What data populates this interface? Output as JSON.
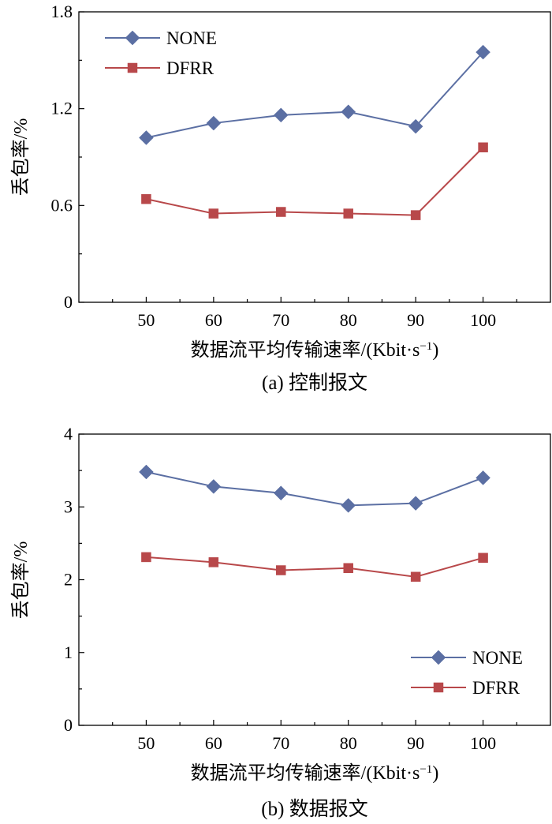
{
  "chart_data": [
    {
      "type": "line",
      "categories": [
        "50",
        "60",
        "70",
        "80",
        "90",
        "100"
      ],
      "x": [
        50,
        60,
        70,
        80,
        90,
        100
      ],
      "series": [
        {
          "name": "NONE",
          "values": [
            1.02,
            1.11,
            1.16,
            1.18,
            1.09,
            1.55
          ],
          "color": "#5b6fa3",
          "marker": "diamond"
        },
        {
          "name": "DFRR",
          "values": [
            0.64,
            0.55,
            0.56,
            0.55,
            0.54,
            0.96
          ],
          "color": "#b8484a",
          "marker": "square"
        }
      ],
      "xlabel": "数据流平均传输速率/(Kbit·s",
      "xlabel_sup": "−1",
      "xlabel_end": ")",
      "ylabel": "丢包率/%",
      "yticks": [
        "0",
        "0.6",
        "1.2",
        "1.8"
      ],
      "ytick_values": [
        0,
        0.6,
        1.2,
        1.8
      ],
      "ylim": [
        0,
        1.8
      ],
      "caption": "(a) 控制报文",
      "legend_position": "top-left",
      "grid": false
    },
    {
      "type": "line",
      "categories": [
        "50",
        "60",
        "70",
        "80",
        "90",
        "100"
      ],
      "x": [
        50,
        60,
        70,
        80,
        90,
        100
      ],
      "series": [
        {
          "name": "NONE",
          "values": [
            3.48,
            3.28,
            3.19,
            3.02,
            3.05,
            3.4
          ],
          "color": "#5b6fa3",
          "marker": "diamond"
        },
        {
          "name": "DFRR",
          "values": [
            2.31,
            2.24,
            2.13,
            2.16,
            2.04,
            2.3
          ],
          "color": "#b8484a",
          "marker": "square"
        }
      ],
      "xlabel": "数据流平均传输速率/(Kbit·s",
      "xlabel_sup": "−1",
      "xlabel_end": ")",
      "ylabel": "丢包率/%",
      "yticks": [
        "0",
        "1",
        "2",
        "3",
        "4"
      ],
      "ytick_values": [
        0,
        1,
        2,
        3,
        4
      ],
      "ylim": [
        0,
        4
      ],
      "caption": "(b) 数据报文",
      "legend_position": "bottom-right",
      "grid": false
    }
  ]
}
